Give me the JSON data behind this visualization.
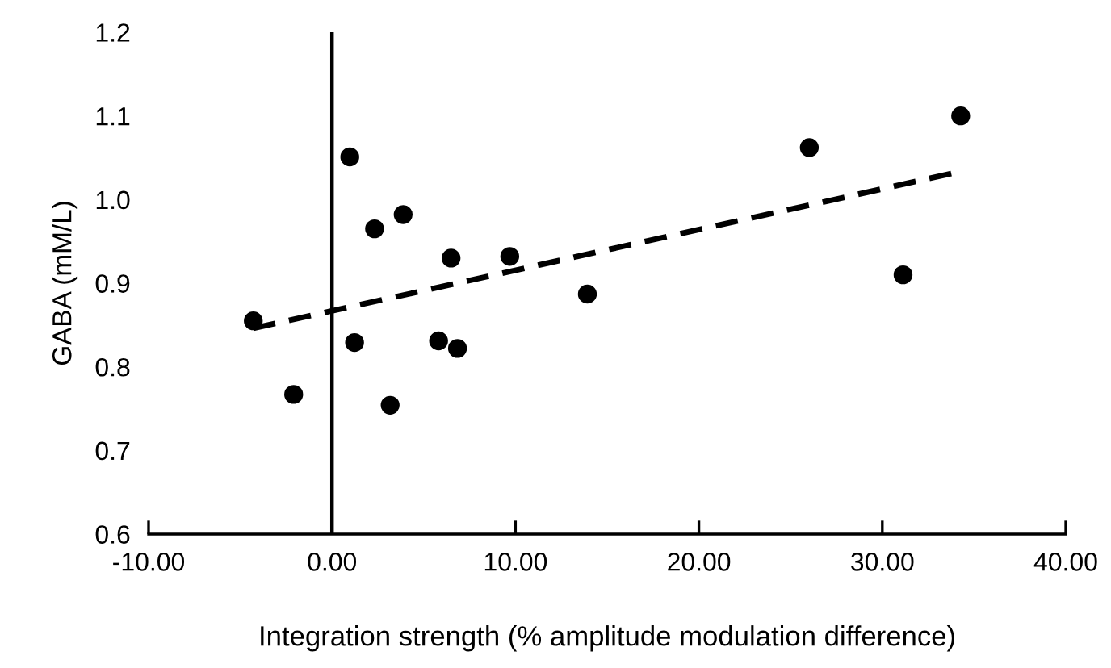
{
  "chart_data": {
    "type": "scatter",
    "xlabel": "Integration strength (% amplitude modulation difference)",
    "ylabel": "GABA (mM/L)",
    "series": [
      {
        "color": "#000000",
        "marker": "circle",
        "x": [
          -4.29,
          -2.09,
          0.97,
          1.23,
          2.32,
          3.88,
          3.17,
          6.49,
          5.81,
          6.84,
          9.69,
          13.92,
          26.02,
          31.13,
          34.27
        ],
        "values": [
          0.855,
          0.767,
          1.051,
          0.829,
          0.965,
          0.982,
          0.754,
          0.93,
          0.831,
          0.822,
          0.932,
          0.887,
          1.062,
          0.91,
          1.1
        ]
      },
      {
        "type": "line",
        "color": "#000000",
        "line_style": "dashed",
        "marker": "none",
        "x": [
          -4.29,
          33.96
        ],
        "values": [
          0.846,
          1.032
        ]
      }
    ],
    "xlim": [
      -10,
      40
    ],
    "xticks": [
      {
        "value": -10,
        "label": "-10.00"
      },
      {
        "value": 0,
        "label": "0.00"
      },
      {
        "value": 10,
        "label": "10.00"
      },
      {
        "value": 20,
        "label": "20.00"
      },
      {
        "value": 30,
        "label": "30.00"
      },
      {
        "value": 40,
        "label": "40.00"
      }
    ],
    "ylim": [
      0.6,
      1.2
    ],
    "yticks": [
      {
        "value": 0.6,
        "label": "0.6"
      },
      {
        "value": 0.7,
        "label": "0.7"
      },
      {
        "value": 0.8,
        "label": "0.8"
      },
      {
        "value": 0.9,
        "label": "0.9"
      },
      {
        "value": 1.0,
        "label": "1.0"
      },
      {
        "value": 1.1,
        "label": "1.1"
      },
      {
        "value": 1.2,
        "label": "1.2"
      }
    ],
    "ref_lines": [
      {
        "axis": "x",
        "value": 0,
        "color": "#000000",
        "line_style": "solid"
      }
    ],
    "grid": false,
    "legend": false
  }
}
